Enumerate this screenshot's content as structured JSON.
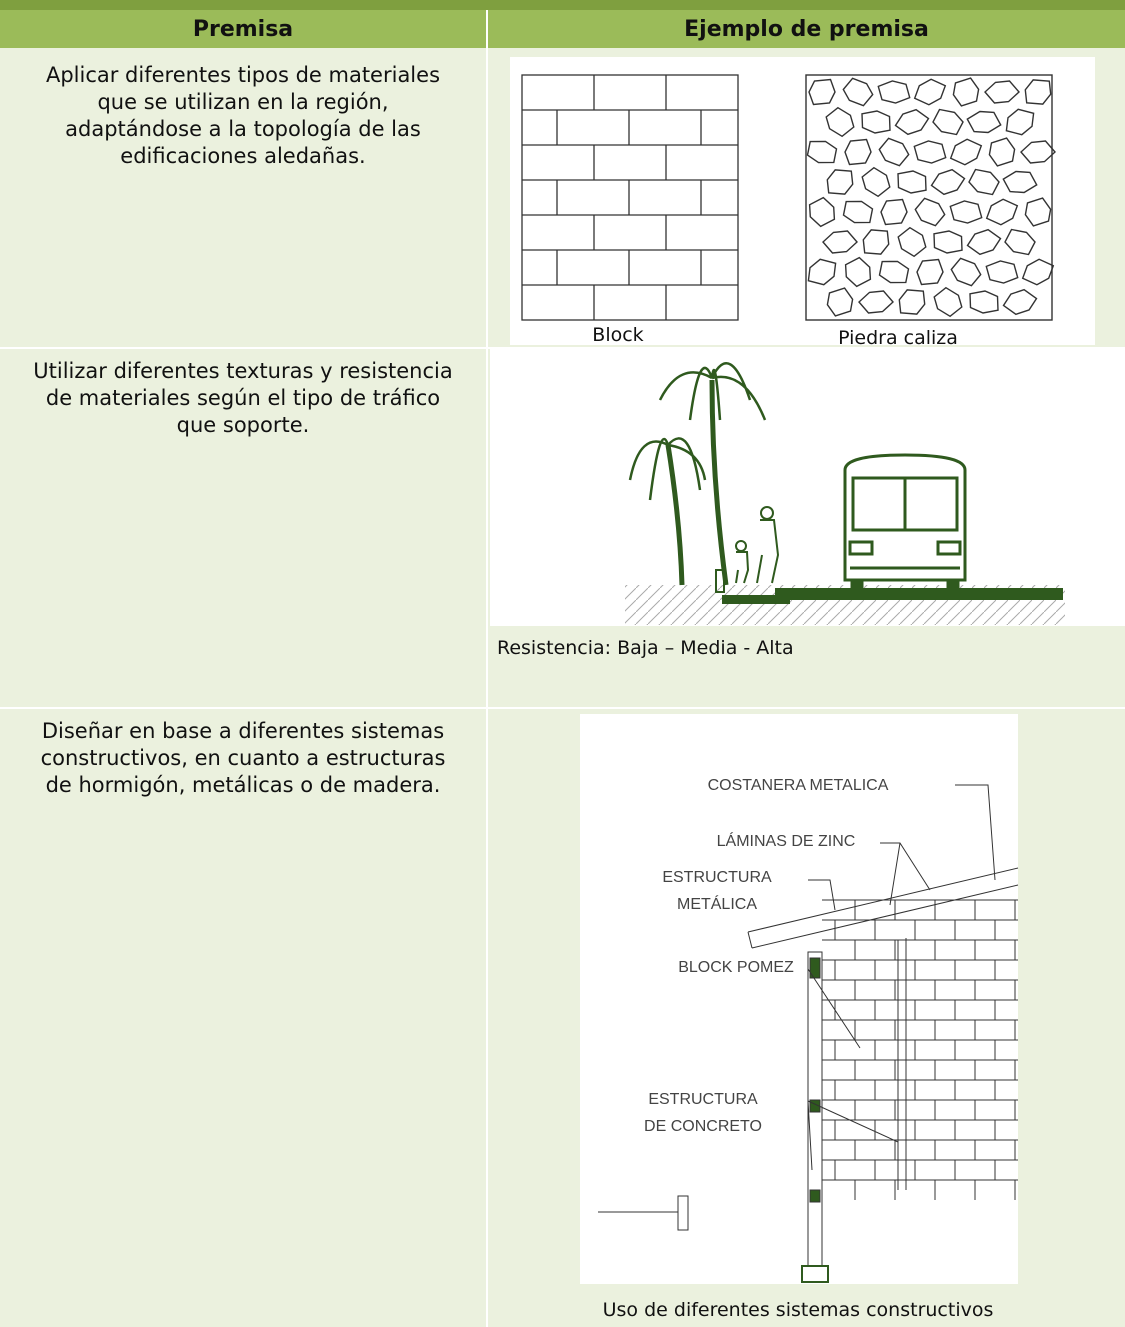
{
  "header": {
    "col1": "Premisa",
    "col2": "Ejemplo de premisa"
  },
  "rows": [
    {
      "premise": "Aplicar diferentes tipos de materiales que se utilizan en la región, adaptándose a la topología de las edificaciones aledañas.",
      "example": {
        "labels": [
          "Block",
          "Piedra caliza"
        ]
      }
    },
    {
      "premise": "Utilizar diferentes texturas y resistencia de materiales según el tipo de tráfico que soporte.",
      "example": {
        "caption": "Resistencia: Baja – Media - Alta"
      }
    },
    {
      "premise": "Diseñar en base a diferentes sistemas constructivos, en cuanto a estructuras de hormigón, metálicas o de madera.",
      "example": {
        "labels": [
          [
            "COSTANERA METALICA"
          ],
          [
            "LÁMINAS DE ZINC"
          ],
          [
            "ESTRUCTURA",
            "METÁLICA"
          ],
          [
            "BLOCK POMEZ"
          ],
          [
            "ESTRUCTURA",
            "DE CONCRETO"
          ]
        ],
        "caption": "Uso de diferentes sistemas constructivos"
      }
    }
  ]
}
